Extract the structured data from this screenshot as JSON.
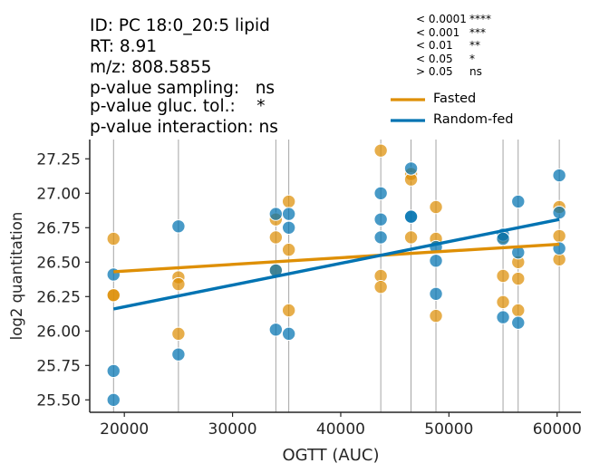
{
  "header": {
    "id_line": "ID: PC 18:0_20:5 lipid",
    "rt_line": "RT: 8.91",
    "mz_line": "m/z: 808.5855",
    "pval_sampling": "p-value sampling:   ns",
    "pval_gluc": "p-value gluc. tol.:    *",
    "pval_interaction": "p-value interaction: ns"
  },
  "significance_key": [
    {
      "threshold": "< 0.0001",
      "stars": "****"
    },
    {
      "threshold": "< 0.001",
      "stars": "***"
    },
    {
      "threshold": "< 0.01",
      "stars": "**"
    },
    {
      "threshold": "< 0.05",
      "stars": "*"
    },
    {
      "threshold": "> 0.05",
      "stars": "ns"
    }
  ],
  "colors": {
    "fasted": "#de8f05",
    "random_fed": "#0173b2",
    "vline": "#9a9a9a"
  },
  "chart_data": {
    "type": "scatter",
    "xlabel": "OGTT (AUC)",
    "ylabel": "log2 quantitation",
    "xlim": [
      16800,
      62200
    ],
    "ylim": [
      25.41,
      27.39
    ],
    "xticks": [
      20000,
      30000,
      40000,
      50000,
      60000
    ],
    "yticks": [
      25.5,
      25.75,
      26.0,
      26.25,
      26.5,
      26.75,
      27.0,
      27.25
    ],
    "vertical_lines": [
      19000,
      25000,
      34000,
      35200,
      43700,
      46500,
      48800,
      55000,
      56400,
      60200
    ],
    "legend_position": "top-right",
    "series": [
      {
        "name": "Fasted",
        "color": "#de8f05",
        "points": [
          [
            19000,
            26.67
          ],
          [
            19000,
            26.26
          ],
          [
            19000,
            26.26
          ],
          [
            25000,
            26.39
          ],
          [
            25000,
            26.34
          ],
          [
            25000,
            25.98
          ],
          [
            34000,
            26.81
          ],
          [
            34000,
            26.68
          ],
          [
            34000,
            26.44
          ],
          [
            35200,
            26.94
          ],
          [
            35200,
            26.59
          ],
          [
            35200,
            26.15
          ],
          [
            43700,
            27.31
          ],
          [
            43700,
            26.4
          ],
          [
            43700,
            26.32
          ],
          [
            46500,
            27.14
          ],
          [
            46500,
            27.1
          ],
          [
            46500,
            26.68
          ],
          [
            48800,
            26.9
          ],
          [
            48800,
            26.67
          ],
          [
            48800,
            26.11
          ],
          [
            55000,
            26.68
          ],
          [
            55000,
            26.4
          ],
          [
            55000,
            26.21
          ],
          [
            56400,
            26.5
          ],
          [
            56400,
            26.38
          ],
          [
            56400,
            26.15
          ],
          [
            60200,
            26.9
          ],
          [
            60200,
            26.69
          ],
          [
            60200,
            26.52
          ]
        ],
        "fit_line": [
          [
            19000,
            26.43
          ],
          [
            60200,
            26.63
          ]
        ]
      },
      {
        "name": "Random-fed",
        "color": "#0173b2",
        "points": [
          [
            19000,
            26.41
          ],
          [
            19000,
            25.71
          ],
          [
            19000,
            25.5
          ],
          [
            25000,
            26.76
          ],
          [
            25000,
            25.83
          ],
          [
            34000,
            26.85
          ],
          [
            34000,
            26.44
          ],
          [
            34000,
            26.01
          ],
          [
            35200,
            26.85
          ],
          [
            35200,
            26.75
          ],
          [
            35200,
            25.98
          ],
          [
            43700,
            27.0
          ],
          [
            43700,
            26.81
          ],
          [
            43700,
            26.68
          ],
          [
            46500,
            27.18
          ],
          [
            46500,
            26.83
          ],
          [
            46500,
            26.83
          ],
          [
            48800,
            26.61
          ],
          [
            48800,
            26.51
          ],
          [
            48800,
            26.27
          ],
          [
            55000,
            26.7
          ],
          [
            55000,
            26.67
          ],
          [
            55000,
            26.1
          ],
          [
            56400,
            26.94
          ],
          [
            56400,
            26.57
          ],
          [
            56400,
            26.06
          ],
          [
            60200,
            27.13
          ],
          [
            60200,
            26.86
          ],
          [
            60200,
            26.6
          ]
        ],
        "fit_line": [
          [
            19000,
            26.16
          ],
          [
            60200,
            26.81
          ]
        ]
      }
    ]
  }
}
